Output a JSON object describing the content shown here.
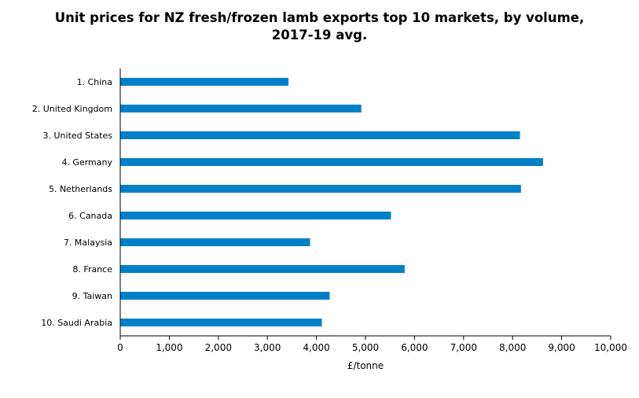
{
  "chart_data": {
    "type": "bar",
    "orientation": "horizontal",
    "title_lines": [
      "Unit prices for NZ fresh/frozen lamb exports top 10 markets, by volume,",
      "2017-19 avg."
    ],
    "categories": [
      "1. China",
      "2. United Kingdom",
      "3. United States",
      "4. Germany",
      "5. Netherlands",
      "6. Canada",
      "7. Malaysia",
      "8. France",
      "9. Taiwan",
      "10. Saudi Arabia"
    ],
    "values": [
      3430,
      4915,
      8150,
      8620,
      8170,
      5520,
      3870,
      5800,
      4270,
      4110
    ],
    "xlabel": "£/tonne",
    "ylabel": "",
    "xlim": [
      0,
      10000
    ],
    "xticks": [
      0,
      1000,
      2000,
      3000,
      4000,
      5000,
      6000,
      7000,
      8000,
      9000,
      10000
    ],
    "xtick_labels": [
      "0",
      "1,000",
      "2,000",
      "3,000",
      "4,000",
      "5,000",
      "6,000",
      "7,000",
      "8,000",
      "9,000",
      "10,000"
    ],
    "grid": false,
    "legend": "none",
    "bar_color": "#0080C9"
  }
}
